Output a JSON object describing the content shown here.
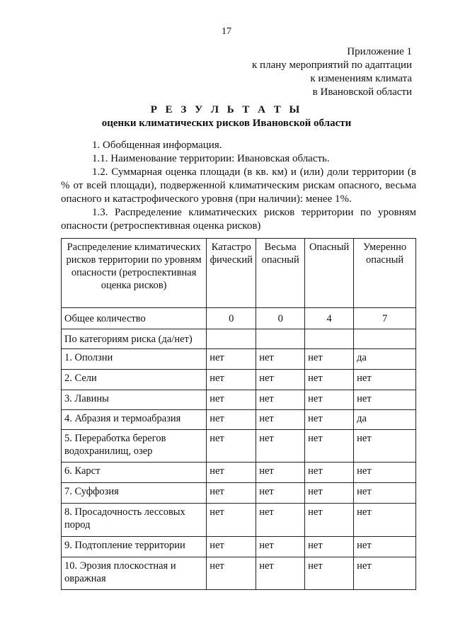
{
  "page_number": "17",
  "appendix": [
    "Приложение 1",
    "к плану мероприятий по адаптации",
    "к изменениям климата",
    "в Ивановской области"
  ],
  "title": "Р Е З У Л Ь Т А Т Ы",
  "subtitle": "оценки климатических рисков Ивановской области",
  "paragraphs": [
    "1. Обобщенная информация.",
    "1.1. Наименование территории: Ивановская область.",
    "1.2. Суммарная оценка площади (в кв. км) и (или) доли территории (в % от всей площади), подверженной климатическим рискам опасного, весьма опасного и катастрофического уровня (при наличии): менее 1%.",
    "1.3. Распределение климатических рисков территории по уровням опасности (ретроспективная оценка рисков)"
  ],
  "table": {
    "headers": [
      "Распределение климатических рисков территории по уровням опасности (ретроспективная оценка рисков)",
      "Катастро фический",
      "Весьма опасный",
      "Опасный",
      "Умеренно опасный"
    ],
    "total": [
      "Общее количество",
      "0",
      "0",
      "4",
      "7"
    ],
    "categories_label": "По категориям риска (да/нет)",
    "rows": [
      [
        "1. Оползни",
        "нет",
        "нет",
        "нет",
        "да"
      ],
      [
        "2. Сели",
        "нет",
        "нет",
        "нет",
        "нет"
      ],
      [
        "3. Лавины",
        "нет",
        "нет",
        "нет",
        "нет"
      ],
      [
        "4. Абразия и термоабразия",
        "нет",
        "нет",
        "нет",
        "да"
      ],
      [
        "5. Переработка берегов водохранилищ, озер",
        "нет",
        "нет",
        "нет",
        "нет"
      ],
      [
        "6. Карст",
        "нет",
        "нет",
        "нет",
        "нет"
      ],
      [
        "7. Суффозия",
        "нет",
        "нет",
        "нет",
        "нет"
      ],
      [
        "8. Просадочность лессовых пород",
        "нет",
        "нет",
        "нет",
        "нет"
      ],
      [
        "9. Подтопление территории",
        "нет",
        "нет",
        "нет",
        "нет"
      ],
      [
        "10. Эрозия плоскостная и овражная",
        "нет",
        "нет",
        "нет",
        "нет"
      ]
    ]
  }
}
